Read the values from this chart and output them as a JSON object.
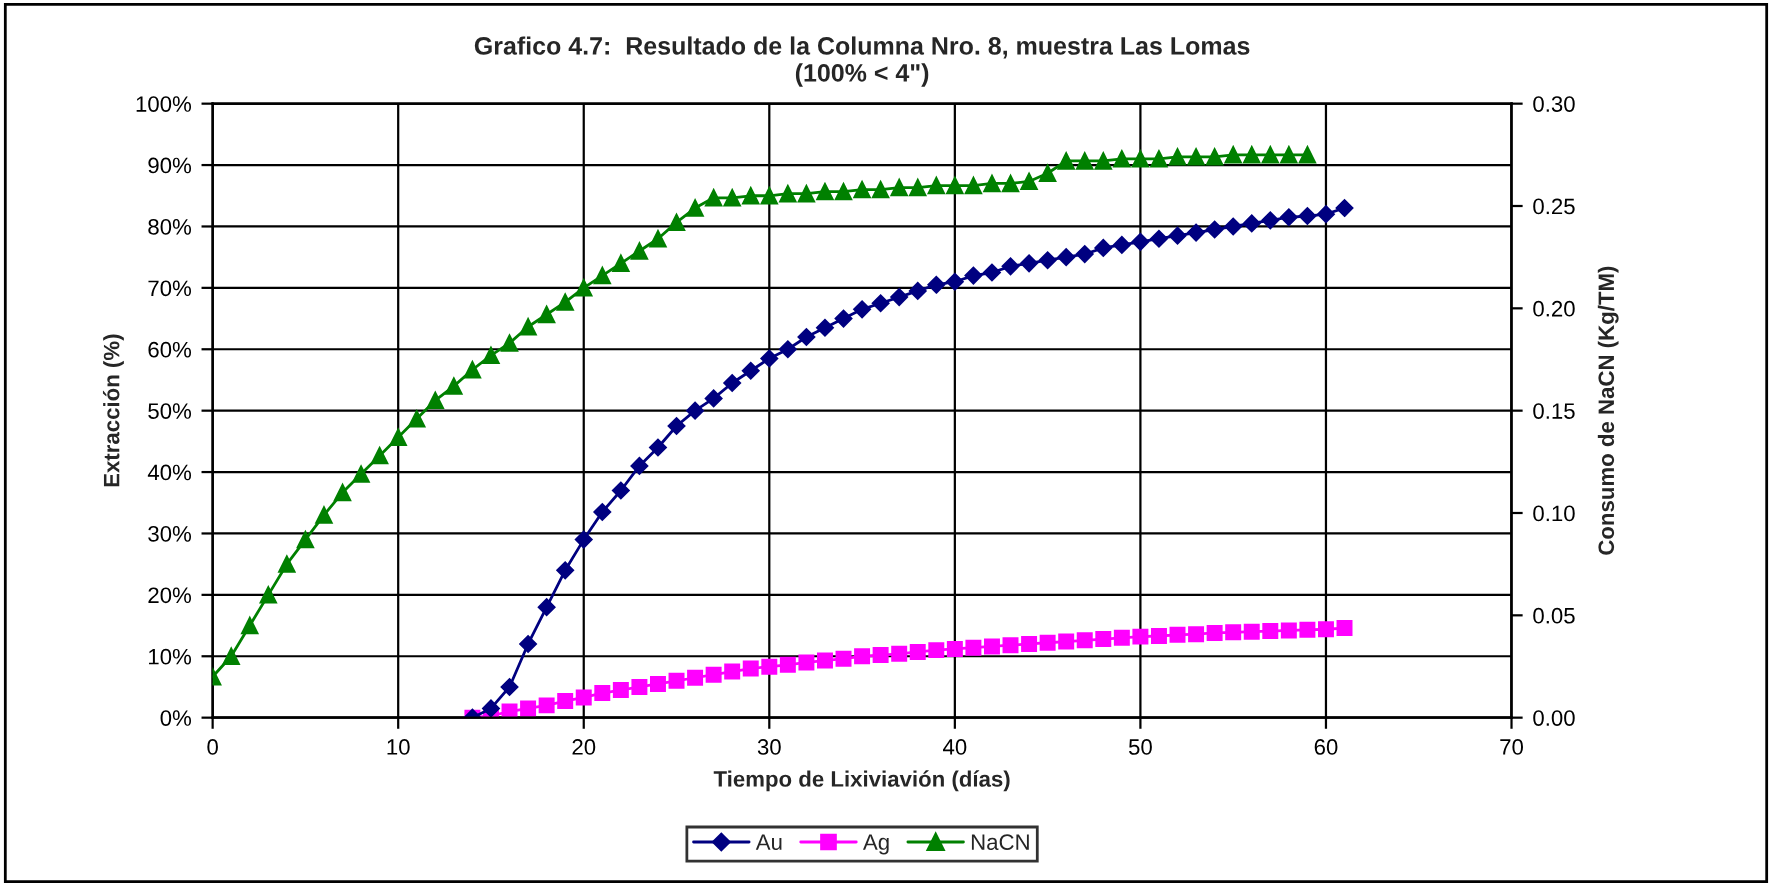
{
  "chart_data": {
    "type": "line",
    "title": "Grafico 4.7:  Resultado de la Columna Nro. 8, muestra Las Lomas\n(100% < 4\")",
    "xlabel": "Tiempo de Lixiviavión (días)",
    "ylabel": "Extracción (%)",
    "y2label": "Consumo de NaCN (Kg/TM)",
    "xlim": [
      0,
      70
    ],
    "xticks": [
      0,
      10,
      20,
      30,
      40,
      50,
      60,
      70
    ],
    "ylim": [
      0,
      100
    ],
    "yticks": [
      {
        "value": 0,
        "label": "0%"
      },
      {
        "value": 10,
        "label": "10%"
      },
      {
        "value": 20,
        "label": "20%"
      },
      {
        "value": 30,
        "label": "30%"
      },
      {
        "value": 40,
        "label": "40%"
      },
      {
        "value": 50,
        "label": "50%"
      },
      {
        "value": 60,
        "label": "60%"
      },
      {
        "value": 70,
        "label": "70%"
      },
      {
        "value": 80,
        "label": "80%"
      },
      {
        "value": 90,
        "label": "90%"
      },
      {
        "value": 100,
        "label": "100%"
      }
    ],
    "y2lim": [
      0,
      0.3
    ],
    "y2ticks": [
      {
        "value": 0,
        "label": "0.00"
      },
      {
        "value": 0.05,
        "label": "0.05"
      },
      {
        "value": 0.1,
        "label": "0.10"
      },
      {
        "value": 0.15,
        "label": "0.15"
      },
      {
        "value": 0.2,
        "label": "0.20"
      },
      {
        "value": 0.25,
        "label": "0.25"
      },
      {
        "value": 0.3,
        "label": "0.30"
      }
    ],
    "grid": true,
    "legend": "bottom",
    "line_style": "solid",
    "series": [
      {
        "name": "Au",
        "color": "#000080",
        "marker": "diamond",
        "x": [
          14,
          15,
          16,
          17,
          18,
          19,
          20,
          21,
          22,
          23,
          24,
          25,
          26,
          27,
          28,
          29,
          30,
          31,
          32,
          33,
          34,
          35,
          36,
          37,
          38,
          39,
          40,
          41,
          42,
          43,
          44,
          45,
          46,
          47,
          48,
          49,
          50,
          51,
          52,
          53,
          54,
          55,
          56,
          57,
          58,
          59,
          60,
          61
        ],
        "values": [
          0,
          1.5,
          5,
          12,
          18,
          24,
          29,
          33.5,
          37,
          41,
          44,
          47.5,
          50,
          52,
          54.5,
          56.5,
          58.5,
          60,
          62,
          63.5,
          65,
          66.5,
          67.5,
          68.5,
          69.5,
          70.5,
          71,
          72,
          72.5,
          73.5,
          74,
          74.5,
          75,
          75.5,
          76.5,
          77,
          77.5,
          78,
          78.5,
          79,
          79.5,
          80,
          80.5,
          81,
          81.5,
          81.7,
          82,
          83
        ]
      },
      {
        "name": "Ag",
        "color": "#ff00ff",
        "marker": "square",
        "x": [
          14,
          15,
          16,
          17,
          18,
          19,
          20,
          21,
          22,
          23,
          24,
          25,
          26,
          27,
          28,
          29,
          30,
          31,
          32,
          33,
          34,
          35,
          36,
          37,
          38,
          39,
          40,
          41,
          42,
          43,
          44,
          45,
          46,
          47,
          48,
          49,
          50,
          51,
          52,
          53,
          54,
          55,
          56,
          57,
          58,
          59,
          60,
          61
        ],
        "values": [
          0,
          0.3,
          1,
          1.5,
          2,
          2.7,
          3.3,
          4,
          4.5,
          5,
          5.5,
          6,
          6.5,
          7,
          7.5,
          8,
          8.3,
          8.6,
          9,
          9.3,
          9.6,
          10,
          10.2,
          10.4,
          10.7,
          11,
          11.2,
          11.4,
          11.6,
          11.8,
          12,
          12.2,
          12.4,
          12.6,
          12.8,
          13,
          13.2,
          13.3,
          13.5,
          13.6,
          13.8,
          13.9,
          14,
          14.1,
          14.2,
          14.3,
          14.4,
          14.6
        ]
      },
      {
        "name": "NaCN",
        "color": "#008000",
        "marker": "triangle",
        "axis": "y2",
        "x": [
          0,
          1,
          2,
          3,
          4,
          5,
          6,
          7,
          8,
          9,
          10,
          11,
          12,
          13,
          14,
          15,
          16,
          17,
          18,
          19,
          20,
          21,
          22,
          23,
          24,
          25,
          26,
          27,
          28,
          29,
          30,
          31,
          32,
          33,
          34,
          35,
          36,
          37,
          38,
          39,
          40,
          41,
          42,
          43,
          44,
          45,
          46,
          47,
          48,
          49,
          50,
          51,
          52,
          53,
          54,
          55,
          56,
          57,
          58,
          59
        ],
        "values": [
          0.02,
          0.03,
          0.045,
          0.06,
          0.075,
          0.087,
          0.099,
          0.11,
          0.119,
          0.128,
          0.137,
          0.146,
          0.155,
          0.162,
          0.17,
          0.177,
          0.183,
          0.191,
          0.197,
          0.203,
          0.21,
          0.216,
          0.222,
          0.228,
          0.234,
          0.242,
          0.249,
          0.254,
          0.254,
          0.255,
          0.255,
          0.256,
          0.256,
          0.257,
          0.257,
          0.258,
          0.258,
          0.259,
          0.259,
          0.26,
          0.26,
          0.26,
          0.261,
          0.261,
          0.262,
          0.266,
          0.272,
          0.272,
          0.272,
          0.273,
          0.273,
          0.273,
          0.274,
          0.274,
          0.274,
          0.275,
          0.275,
          0.275,
          0.275,
          0.275
        ]
      }
    ]
  }
}
